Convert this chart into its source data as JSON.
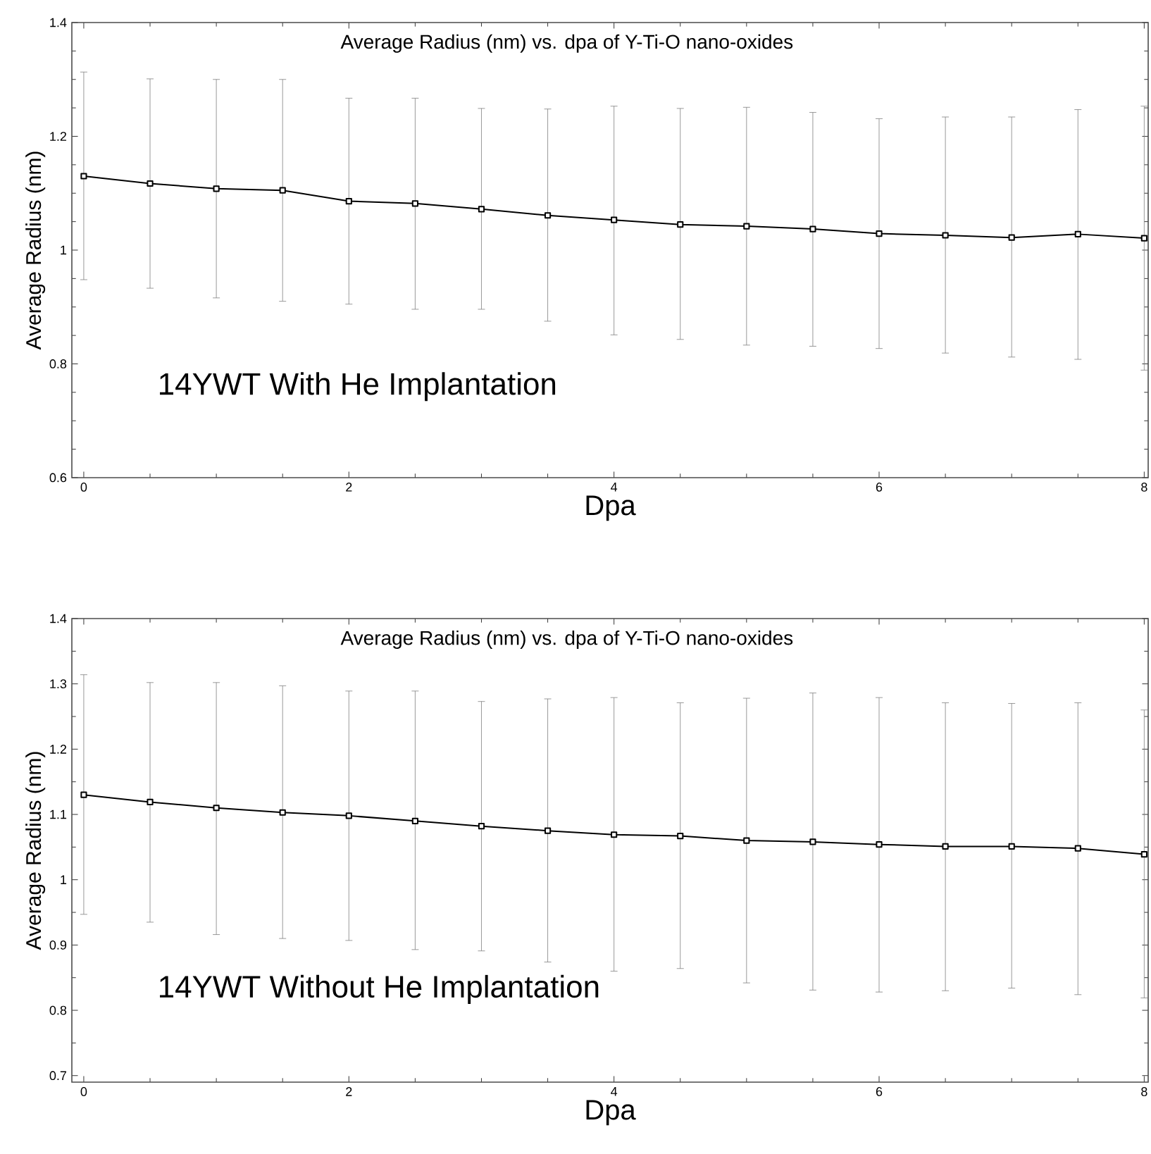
{
  "chart_data": [
    {
      "type": "line",
      "title": "Average Radius (nm) vs. dpa of Y-Ti-O nano-oxides",
      "xlabel": "Dpa",
      "ylabel": "Average Radius (nm)",
      "annotations": [
        "14YWT With He Implantation"
      ],
      "x": [
        0,
        0.5,
        1,
        1.5,
        2,
        2.5,
        3,
        3.5,
        4,
        4.5,
        5,
        5.5,
        6,
        6.5,
        7,
        7.5,
        8
      ],
      "series": [
        {
          "color": "#000000",
          "values": [
            1.13,
            1.117,
            1.108,
            1.105,
            1.086,
            1.082,
            1.072,
            1.061,
            1.053,
            1.045,
            1.042,
            1.037,
            1.029,
            1.026,
            1.022,
            1.028,
            1.021
          ],
          "errors": [
            [
              0.948,
              1.313
            ],
            [
              0.933,
              1.301
            ],
            [
              0.916,
              1.3
            ],
            [
              0.91,
              1.3
            ],
            [
              0.905,
              1.267
            ],
            [
              0.896,
              1.267
            ],
            [
              0.896,
              1.249
            ],
            [
              0.875,
              1.248
            ],
            [
              0.851,
              1.253
            ],
            [
              0.843,
              1.249
            ],
            [
              0.833,
              1.251
            ],
            [
              0.831,
              1.242
            ],
            [
              0.827,
              1.231
            ],
            [
              0.819,
              1.234
            ],
            [
              0.812,
              1.234
            ],
            [
              0.808,
              1.247
            ],
            [
              0.789,
              1.253
            ]
          ]
        }
      ],
      "xlim": [
        -0.09,
        8.03
      ],
      "ylim": [
        0.6,
        1.4
      ],
      "xticks": [
        0,
        2,
        4,
        6,
        8
      ],
      "yticks": [
        0.6,
        0.8,
        1,
        1.2,
        1.4
      ],
      "marker": "square",
      "line_style": "solid"
    },
    {
      "type": "line",
      "title": "Average Radius (nm) vs. dpa of Y-Ti-O nano-oxides",
      "xlabel": "Dpa",
      "ylabel": "Average Radius (nm)",
      "annotations": [
        "14YWT Without He Implantation"
      ],
      "x": [
        0,
        0.5,
        1,
        1.5,
        2,
        2.5,
        3,
        3.5,
        4,
        4.5,
        5,
        5.5,
        6,
        6.5,
        7,
        7.5,
        8
      ],
      "series": [
        {
          "color": "#000000",
          "values": [
            1.13,
            1.119,
            1.11,
            1.103,
            1.098,
            1.09,
            1.082,
            1.075,
            1.069,
            1.067,
            1.06,
            1.058,
            1.054,
            1.051,
            1.051,
            1.048,
            1.039
          ],
          "errors": [
            [
              0.947,
              1.314
            ],
            [
              0.935,
              1.302
            ],
            [
              0.916,
              1.302
            ],
            [
              0.91,
              1.297
            ],
            [
              0.907,
              1.289
            ],
            [
              0.893,
              1.289
            ],
            [
              0.891,
              1.273
            ],
            [
              0.874,
              1.277
            ],
            [
              0.86,
              1.279
            ],
            [
              0.864,
              1.271
            ],
            [
              0.842,
              1.278
            ],
            [
              0.831,
              1.286
            ],
            [
              0.828,
              1.279
            ],
            [
              0.83,
              1.271
            ],
            [
              0.834,
              1.27
            ],
            [
              0.824,
              1.271
            ],
            [
              0.819,
              1.26
            ]
          ]
        }
      ],
      "xlim": [
        -0.09,
        8.03
      ],
      "ylim": [
        0.69,
        1.4
      ],
      "xticks": [
        0,
        2,
        4,
        6,
        8
      ],
      "yticks": [
        0.7,
        0.8,
        0.9,
        1,
        1.1,
        1.2,
        1.3,
        1.4
      ],
      "marker": "square",
      "line_style": "solid"
    }
  ]
}
